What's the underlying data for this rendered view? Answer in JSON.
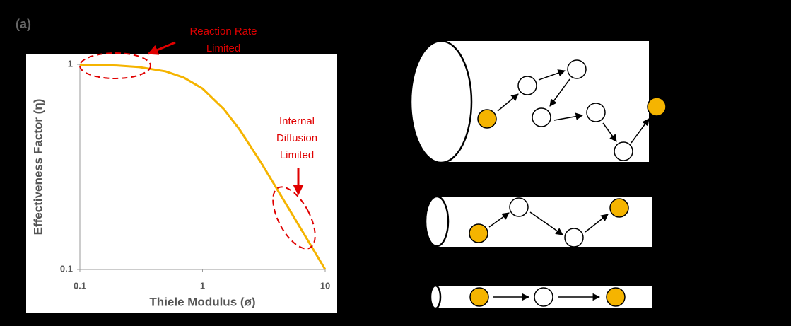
{
  "figure_label": "(a)",
  "chart_data": {
    "type": "line",
    "xlabel": "Thiele Modulus (ø)",
    "ylabel": "Effectiveness Factor (η)",
    "xscale": "log",
    "yscale": "log",
    "xlim": [
      0.1,
      10
    ],
    "ylim": [
      0.1,
      1
    ],
    "xticks": [
      0.1,
      1,
      10
    ],
    "yticks": [
      0.1,
      1
    ],
    "grid": false,
    "x": [
      0.1,
      0.2,
      0.3,
      0.5,
      0.7,
      1,
      1.5,
      2,
      3,
      5,
      7,
      10
    ],
    "series": [
      {
        "color": "#f5b400",
        "values": [
          0.997,
          0.987,
          0.971,
          0.924,
          0.863,
          0.762,
          0.603,
          0.482,
          0.332,
          0.2,
          0.143,
          0.1
        ]
      }
    ],
    "annotations": [
      {
        "lines": [
          "Reaction Rate",
          "Limited"
        ]
      },
      {
        "lines": [
          "Internal",
          "Diffusion",
          "Limited"
        ]
      }
    ]
  }
}
